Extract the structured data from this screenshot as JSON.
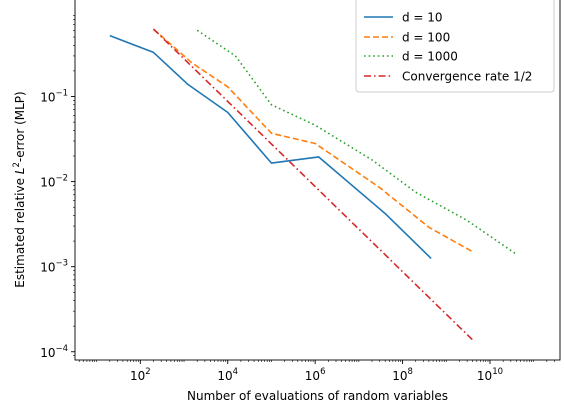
{
  "chart_data": {
    "type": "line",
    "xlabel": "Number of evaluations of random variables",
    "ylabel_prefix": "Estimated relative ",
    "ylabel_var": "L",
    "ylabel_sup": "2",
    "ylabel_suffix": "-error (MLP)",
    "xscale": "log",
    "yscale": "log",
    "xlim": [
      3.2,
      400000000000.0
    ],
    "ylim": [
      8e-05,
      1.4
    ],
    "grid": false,
    "legend_position": "top-right",
    "xticks": [
      {
        "value": 100,
        "base": "10",
        "exp": "2"
      },
      {
        "value": 10000,
        "base": "10",
        "exp": "4"
      },
      {
        "value": 1000000,
        "base": "10",
        "exp": "6"
      },
      {
        "value": 100000000,
        "base": "10",
        "exp": "8"
      },
      {
        "value": 10000000000,
        "base": "10",
        "exp": "10"
      }
    ],
    "yticks": [
      {
        "value": 0.0001,
        "base": "10",
        "exp": "−4"
      },
      {
        "value": 0.001,
        "base": "10",
        "exp": "−3"
      },
      {
        "value": 0.01,
        "base": "10",
        "exp": "−2"
      },
      {
        "value": 0.1,
        "base": "10",
        "exp": "−1"
      }
    ],
    "series": [
      {
        "name": "d = 10",
        "color": "#1f77b4",
        "style": "solid",
        "x": [
          20,
          200,
          1200,
          10000,
          100000,
          1200000,
          40000000,
          450000000
        ],
        "y": [
          0.52,
          0.33,
          0.14,
          0.065,
          0.0165,
          0.0195,
          0.0042,
          0.00125
        ]
      },
      {
        "name": "d = 100",
        "color": "#ff7f0e",
        "style": "dashed",
        "x": [
          200,
          1500,
          10000,
          100000,
          1000000,
          30000000,
          400000000,
          4000000000
        ],
        "y": [
          0.62,
          0.25,
          0.13,
          0.037,
          0.028,
          0.0085,
          0.0029,
          0.0015
        ]
      },
      {
        "name": "d = 1000",
        "color": "#2ca02c",
        "style": "dotted",
        "x": [
          2000,
          15000,
          100000,
          1000000,
          20000000,
          200000000,
          3000000000,
          40000000000
        ],
        "y": [
          0.6,
          0.3,
          0.08,
          0.046,
          0.018,
          0.0075,
          0.0035,
          0.0014
        ]
      },
      {
        "name": "Convergence rate 1/2",
        "color": "#d62728",
        "style": "dashdot",
        "x": [
          200,
          4000000000
        ],
        "y": [
          0.62,
          0.000138
        ]
      }
    ]
  }
}
